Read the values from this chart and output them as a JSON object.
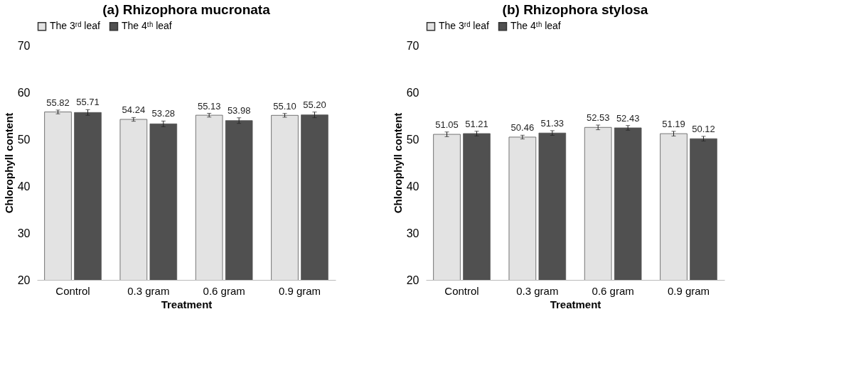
{
  "chart_data": [
    {
      "type": "bar",
      "title": "(a) Rhizophora mucronata",
      "xlabel": "Treatment",
      "ylabel": "Chlorophyll content",
      "categories": [
        "Control",
        "0.3 gram",
        "0.6 gram",
        "0.9 gram"
      ],
      "series": [
        {
          "name": "The 3ʳᵈ leaf",
          "color": "#e3e3e3",
          "values": [
            55.82,
            54.24,
            55.13,
            55.1
          ],
          "errors": [
            0.4,
            0.4,
            0.4,
            0.4
          ],
          "value_labels": [
            "55.82",
            "54.24",
            "55.13",
            "55.10"
          ]
        },
        {
          "name": "The 4ᵗʰ leaf",
          "color": "#505050",
          "values": [
            55.71,
            53.28,
            53.98,
            55.2
          ],
          "errors": [
            0.6,
            0.6,
            0.6,
            0.6
          ],
          "value_labels": [
            "55.71",
            "53.28",
            "53.98",
            "55.20"
          ]
        }
      ],
      "ylim": [
        20,
        70
      ],
      "yticks": [
        20,
        30,
        40,
        50,
        60,
        70
      ],
      "legend": "top",
      "grid": false
    },
    {
      "type": "bar",
      "title": "(b) Rhizophora stylosa",
      "xlabel": "Treatment",
      "ylabel": "Chlorophyll content",
      "categories": [
        "Control",
        "0.3 gram",
        "0.6 gram",
        "0.9 gram"
      ],
      "series": [
        {
          "name": "The 3ʳᵈ leaf",
          "color": "#e3e3e3",
          "values": [
            51.05,
            50.46,
            52.53,
            51.19
          ],
          "errors": [
            0.5,
            0.4,
            0.5,
            0.5
          ],
          "value_labels": [
            "51.05",
            "50.46",
            "52.53",
            "51.19"
          ]
        },
        {
          "name": "The 4ᵗʰ leaf",
          "color": "#505050",
          "values": [
            51.21,
            51.33,
            52.43,
            50.12
          ],
          "errors": [
            0.5,
            0.5,
            0.5,
            0.5
          ],
          "value_labels": [
            "51.21",
            "51.33",
            "52.43",
            "50.12"
          ]
        }
      ],
      "ylim": [
        20,
        70
      ],
      "yticks": [
        20,
        30,
        40,
        50,
        60,
        70
      ],
      "legend": "top",
      "grid": false
    }
  ]
}
